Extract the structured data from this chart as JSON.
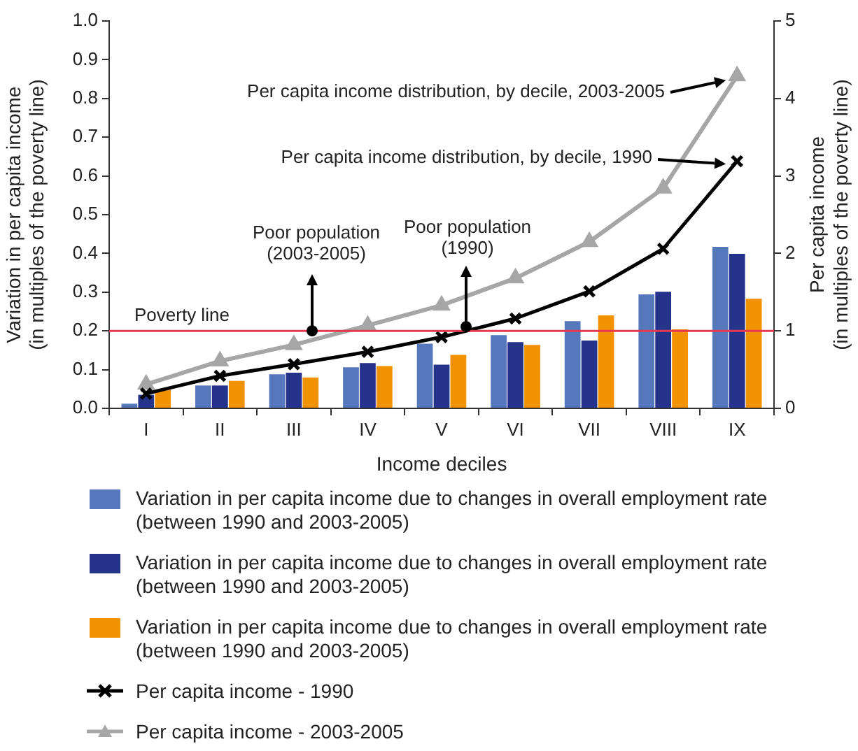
{
  "chart_data": {
    "type": "bar",
    "xlabel": "Income deciles",
    "ylabel": "Variation in per capita income\n(in multiples of the poverty line)",
    "y2label": "Per capita income\n(in multiples of the poverty line)",
    "categories": [
      "I",
      "II",
      "III",
      "IV",
      "V",
      "VI",
      "VII",
      "VIII",
      "IX"
    ],
    "series": [
      {
        "name": "Variation in per capita income due to changes in overall employment rate\n(between 1990 and 2003-2005)",
        "color": "#5577bb",
        "values": [
          0.012,
          0.059,
          0.088,
          0.106,
          0.167,
          0.189,
          0.225,
          0.294,
          0.417
        ]
      },
      {
        "name": "Variation in per capita income due to changes in overall employment rate\n(between 1990 and 2003-2005)",
        "color": "#26338a",
        "values": [
          0.035,
          0.059,
          0.092,
          0.117,
          0.113,
          0.171,
          0.175,
          0.301,
          0.399
        ]
      },
      {
        "name": "Variation in per capita income due to changes in overall employment rate\n(between 1990 and 2003-2005)",
        "color": "#f39200",
        "values": [
          0.048,
          0.071,
          0.08,
          0.109,
          0.138,
          0.164,
          0.24,
          0.204,
          0.283
        ]
      },
      {
        "name": "Per capita income - 1990",
        "type": "line",
        "axis": "y2",
        "color": "#000000",
        "marker": "cross",
        "values": [
          0.19,
          0.42,
          0.57,
          0.73,
          0.92,
          1.16,
          1.51,
          2.06,
          3.19
        ]
      },
      {
        "name": "Per capita income - 2003-2005",
        "type": "line",
        "axis": "y2",
        "color": "#a6a6a6",
        "marker": "triangle",
        "values": [
          0.31,
          0.61,
          0.82,
          1.07,
          1.33,
          1.68,
          2.15,
          2.84,
          4.29
        ]
      }
    ],
    "ylim": [
      0,
      1
    ],
    "yticks": [
      {
        "value": 0,
        "label": "0.0"
      },
      {
        "value": 0.1,
        "label": "0.1"
      },
      {
        "value": 0.2,
        "label": "0.2"
      },
      {
        "value": 0.3,
        "label": "0.3"
      },
      {
        "value": 0.4,
        "label": "0.4"
      },
      {
        "value": 0.5,
        "label": "0.5"
      },
      {
        "value": 0.6,
        "label": "0.6"
      },
      {
        "value": 0.7,
        "label": "0.7"
      },
      {
        "value": 0.8,
        "label": "0.8"
      },
      {
        "value": 0.9,
        "label": "0.9"
      },
      {
        "value": 1,
        "label": "1.0"
      }
    ],
    "y2lim": [
      0,
      5
    ],
    "y2ticks": [
      0,
      1,
      2,
      3,
      4,
      5
    ],
    "ref_lines": [
      {
        "axis": "y2",
        "value": 1,
        "label": "Poverty line",
        "color": "#e8384f"
      }
    ],
    "annotations": [
      "Per capita income distribution, by decile, 2003-2005",
      "Per capita income distribution, by decile, 1990",
      "Poor population\n(2003-2005)",
      "Poor population\n(1990)"
    ],
    "grid": false,
    "legend": "bottom"
  }
}
